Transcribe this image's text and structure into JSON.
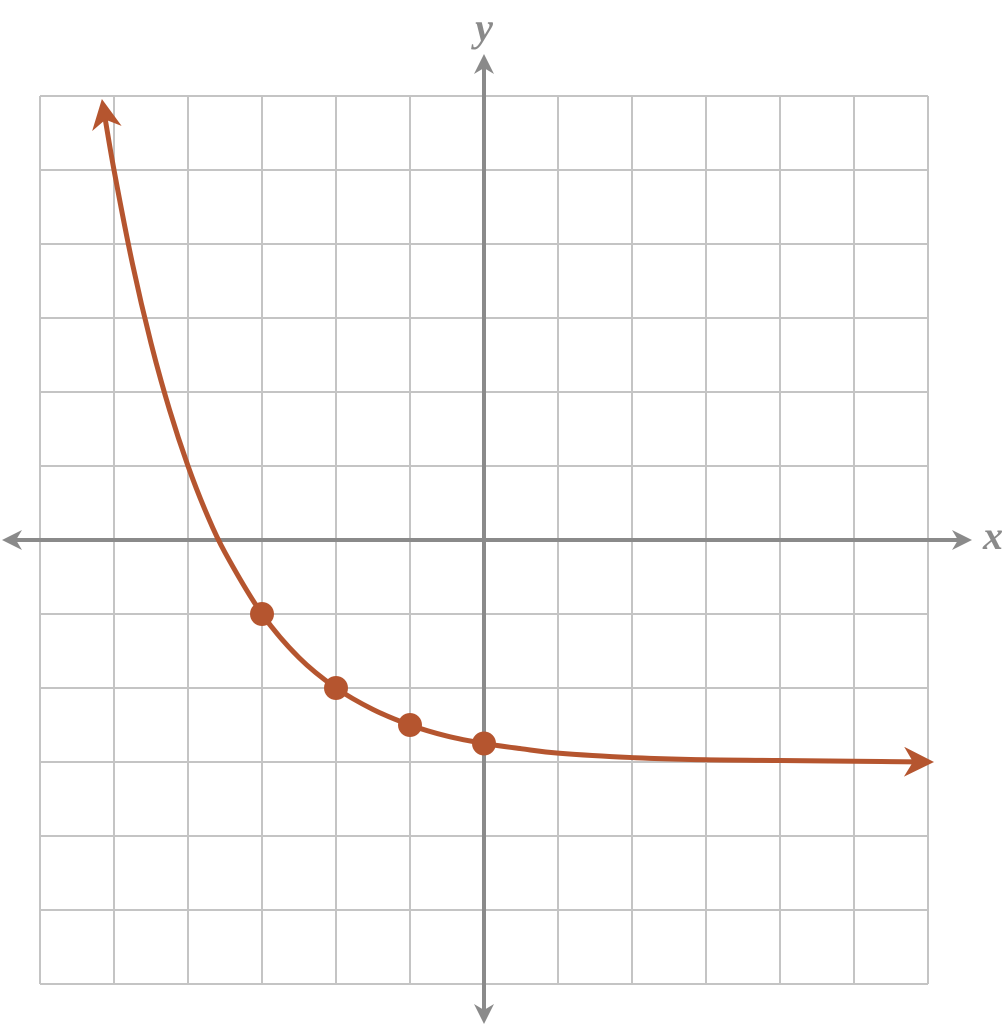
{
  "chart_data": {
    "type": "line",
    "x_label": "x",
    "y_label": "y",
    "xlim": [
      -6,
      6
    ],
    "ylim": [
      -6,
      6
    ],
    "xticks": [
      -6,
      -5,
      -4,
      -3,
      -2,
      -1,
      0,
      1,
      2,
      3,
      4,
      5,
      6
    ],
    "yticks": [
      -6,
      -5,
      -4,
      -3,
      -2,
      -1,
      0,
      1,
      2,
      3,
      4,
      5,
      6
    ],
    "grid": true,
    "series": [
      {
        "type": "line",
        "color": "#b5552f",
        "arrows": true,
        "x": [
          -5.15,
          -5,
          -4.75,
          -4.5,
          -4.25,
          -4,
          -3.75,
          -3.5,
          -3,
          -2.5,
          -2,
          -1.5,
          -1,
          -0.5,
          0,
          0.5,
          1,
          2,
          3,
          4,
          5,
          6
        ],
        "values": [
          5.88,
          5,
          3.73,
          2.66,
          1.76,
          1,
          0.36,
          -0.17,
          -1,
          -1.59,
          -2,
          -2.29,
          -2.5,
          -2.65,
          -2.75,
          -2.82,
          -2.88,
          -2.94,
          -2.97,
          -2.98,
          -2.99,
          -3
        ]
      },
      {
        "type": "scatter",
        "color": "#b5552f",
        "x": [
          -3,
          -2,
          -1,
          0
        ],
        "values": [
          -1,
          -2,
          -2.5,
          -2.75
        ]
      }
    ]
  }
}
